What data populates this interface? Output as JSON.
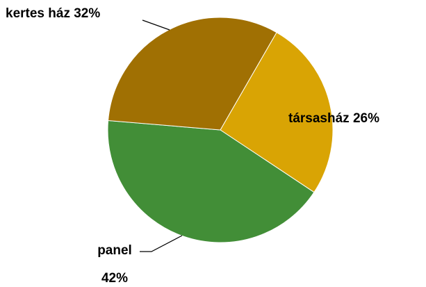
{
  "chart_data": {
    "type": "pie",
    "categories": [
      "társasház",
      "panel",
      "kertes ház"
    ],
    "values": [
      26,
      42,
      32
    ],
    "value_labels": [
      "26%",
      "42%",
      "32%"
    ],
    "colors": [
      "#d9a404",
      "#428e37",
      "#a07003"
    ]
  }
}
